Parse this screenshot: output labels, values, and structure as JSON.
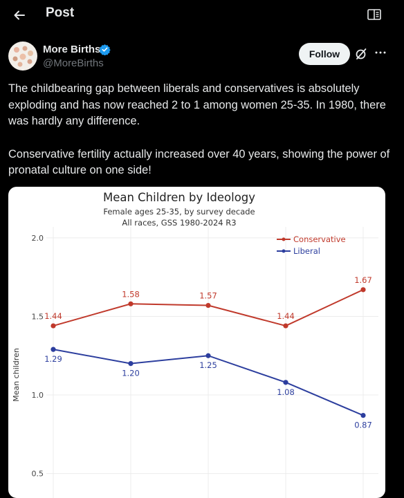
{
  "header": {
    "title": "Post"
  },
  "post": {
    "author_name": "More Births",
    "author_handle": "@MoreBirths",
    "follow_label": "Follow",
    "paragraphs": [
      "The childbearing gap between liberals and conservatives is absolutely exploding and has now reached 2 to 1 among women 25-35. In 1980, there was hardly any difference.",
      "Conservative fertility actually increased over 40 years, showing the power of pronatal culture on one side!"
    ]
  },
  "icons": {
    "back": "arrow-left-icon",
    "reader": "reader-mode-icon",
    "verified": "verified-badge-icon",
    "grok": "grok-icon",
    "more": "more-horizontal-icon"
  },
  "colors": {
    "background": "#000000",
    "text": "#e7e9ea",
    "muted": "#71767b",
    "verified": "#1d9bf0",
    "conservative": "#c0392b",
    "liberal": "#2c3e9e"
  },
  "chart_data": {
    "type": "line",
    "title": "Mean Children by Ideology",
    "subtitle": "Female ages 25-35, by survey decade",
    "subtitle2": "All races, GSS 1980-2024 R3",
    "ylabel": "Mean children",
    "ylim": [
      0.3,
      2.07
    ],
    "yticks": [
      {
        "value": 2.0,
        "label": "2.0"
      },
      {
        "value": 1.5,
        "label": "1.5"
      },
      {
        "value": 1.0,
        "label": "1.0"
      },
      {
        "value": 0.5,
        "label": "0.5"
      }
    ],
    "grid": true,
    "legend": "top-right",
    "series": [
      {
        "name": "Conservative",
        "color": "#c0392b",
        "values": [
          1.44,
          1.58,
          1.57,
          1.44,
          1.67
        ],
        "labels": [
          "1.44",
          "1.58",
          "1.57",
          "1.44",
          "1.67"
        ]
      },
      {
        "name": "Liberal",
        "color": "#2c3e9e",
        "values": [
          1.29,
          1.2,
          1.25,
          1.08,
          0.87
        ],
        "labels": [
          "1.29",
          "1.20",
          "1.25",
          "1.08",
          "0.87"
        ]
      }
    ]
  }
}
